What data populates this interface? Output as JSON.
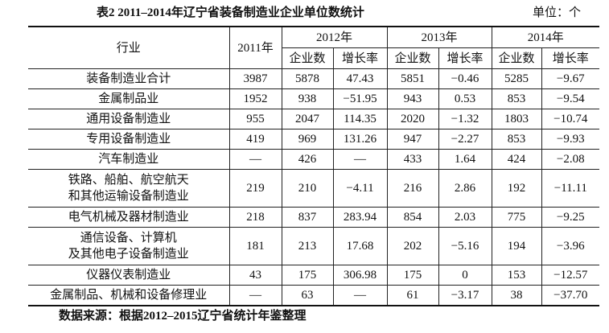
{
  "header": {
    "title": "表2 2011–2014年辽宁省装备制造业企业单位数统计",
    "unit": "单位：个"
  },
  "table": {
    "columns": [
      "行业",
      "2011年",
      "2012年",
      "2013年",
      "2014年"
    ],
    "subcolumns": [
      "企业数",
      "增长率",
      "企业数",
      "增长率",
      "企业数",
      "增长率"
    ],
    "rows": [
      [
        [
          "装备制造业合计"
        ],
        "3987",
        "5878",
        "47.43",
        "5851",
        "−0.46",
        "5285",
        "−9.67"
      ],
      [
        [
          "金属制品业"
        ],
        "1952",
        "938",
        "−51.95",
        "943",
        "0.53",
        "853",
        "−9.54"
      ],
      [
        [
          "通用设备制造业"
        ],
        "955",
        "2047",
        "114.35",
        "2020",
        "−1.32",
        "1803",
        "−10.74"
      ],
      [
        [
          "专用设备制造业"
        ],
        "419",
        "969",
        "131.26",
        "947",
        "−2.27",
        "853",
        "−9.93"
      ],
      [
        [
          "汽车制造业"
        ],
        "—",
        "426",
        "—",
        "433",
        "1.64",
        "424",
        "−2.08"
      ],
      [
        [
          "铁路、船舶、航空航天",
          "和其他运输设备制造业"
        ],
        "219",
        "210",
        "−4.11",
        "216",
        "2.86",
        "192",
        "−11.11"
      ],
      [
        [
          "电气机械及器材制造业"
        ],
        "218",
        "837",
        "283.94",
        "854",
        "2.03",
        "775",
        "−9.25"
      ],
      [
        [
          "通信设备、计算机",
          "及其他电子设备制造业"
        ],
        "181",
        "213",
        "17.68",
        "202",
        "−5.16",
        "194",
        "−3.96"
      ],
      [
        [
          "仪器仪表制造业"
        ],
        "43",
        "175",
        "306.98",
        "175",
        "0",
        "153",
        "−12.57"
      ],
      [
        [
          "金属制品、机械和设备修理业"
        ],
        "—",
        "63",
        "—",
        "61",
        "−3.17",
        "38",
        "−37.70"
      ]
    ]
  },
  "footer": {
    "source": "数据来源：根据2012–2015辽宁省统计年鉴整理"
  }
}
